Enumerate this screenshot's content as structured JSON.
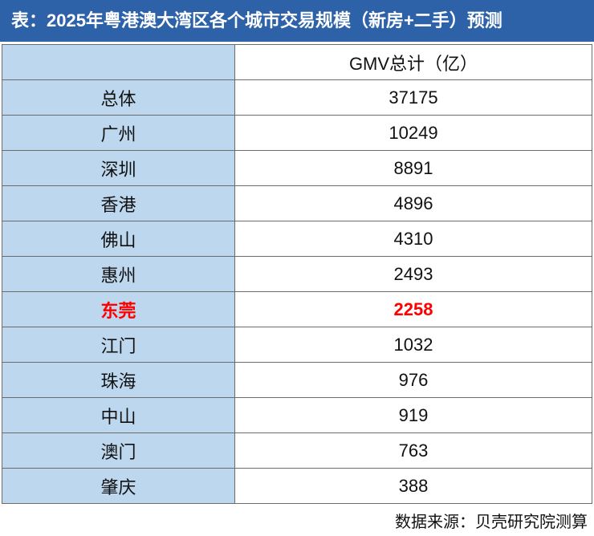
{
  "title": "表：2025年粤港澳大湾区各个城市交易规模（新房+二手）预测",
  "header": {
    "city": "",
    "value": "GMV总计（亿）"
  },
  "rows": [
    {
      "city": "总体",
      "value": "37175"
    },
    {
      "city": "广州",
      "value": "10249"
    },
    {
      "city": "深圳",
      "value": "8891"
    },
    {
      "city": "香港",
      "value": "4896"
    },
    {
      "city": "佛山",
      "value": "4310"
    },
    {
      "city": "惠州",
      "value": "2493"
    },
    {
      "city": "东莞",
      "value": "2258"
    },
    {
      "city": "江门",
      "value": "1032"
    },
    {
      "city": "珠海",
      "value": "976"
    },
    {
      "city": "中山",
      "value": "919"
    },
    {
      "city": "澳门",
      "value": "763"
    },
    {
      "city": "肇庆",
      "value": "388"
    }
  ],
  "source": "数据来源：贝壳研究院测算",
  "colors": {
    "title_bg": "#2E62A8",
    "city_bg": "#BDD7EE",
    "highlight_text": "#FF0000"
  },
  "chart_data": {
    "type": "table",
    "title": "表：2025年粤港澳大湾区各个城市交易规模（新房+二手）预测",
    "columns": [
      "",
      "GMV总计（亿）"
    ],
    "categories": [
      "总体",
      "广州",
      "深圳",
      "香港",
      "佛山",
      "惠州",
      "东莞",
      "江门",
      "珠海",
      "中山",
      "澳门",
      "肇庆"
    ],
    "values": [
      37175,
      10249,
      8891,
      4896,
      4310,
      2493,
      2258,
      1032,
      976,
      919,
      763,
      388
    ],
    "highlighted_category": "东莞"
  }
}
